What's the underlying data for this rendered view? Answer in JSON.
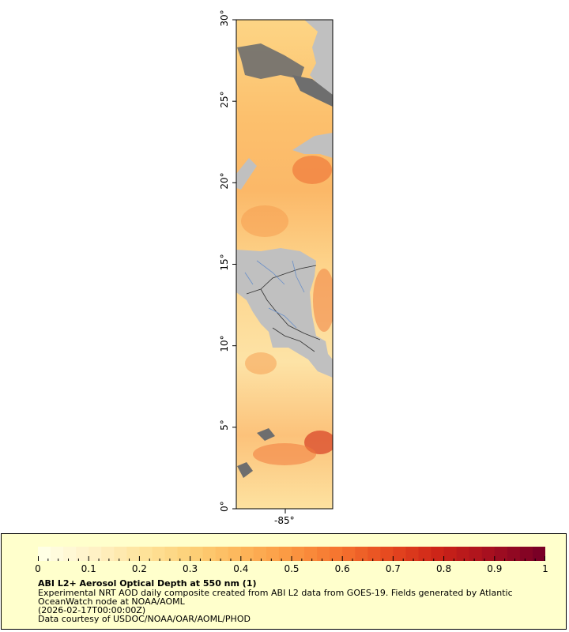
{
  "map": {
    "lat_ticks": [
      "0°",
      "5°",
      "10°",
      "15°",
      "20°",
      "25°",
      "30°"
    ],
    "lon_ticks": [
      "-85°"
    ],
    "extent": {
      "lat_min": 0,
      "lat_max": 30
    },
    "colors": {
      "land": "#c0c0c0",
      "no_data": "#6e6e6e",
      "borders": "#333333",
      "rivers": "#6a8fc7",
      "frame": "#000000"
    }
  },
  "legend": {
    "title": "ABI L2+ Aerosol Optical Depth at 550 nm (1)",
    "line1": "Experimental NRT AOD daily composite created from ABI L2 data from GOES-19. Fields generated by Atlantic",
    "line2": "OceanWatch node at NOAA/AOML",
    "line3": "(2026-02-17T00:00:00Z)",
    "line4": "Data courtesy of USDOC/NOAA/OAR/AOML/PHOD",
    "scale_labels": [
      "0",
      "0.1",
      "0.2",
      "0.3",
      "0.4",
      "0.5",
      "0.6",
      "0.7",
      "0.8",
      "0.9",
      "1"
    ],
    "scale_min": 0,
    "scale_max": 1,
    "colormap": [
      "#ffffe5",
      "#fff1c6",
      "#fee39b",
      "#fdd077",
      "#fdb55a",
      "#fb9741",
      "#f5722e",
      "#e5481f",
      "#cc2318",
      "#a6101f",
      "#7a0026"
    ]
  }
}
